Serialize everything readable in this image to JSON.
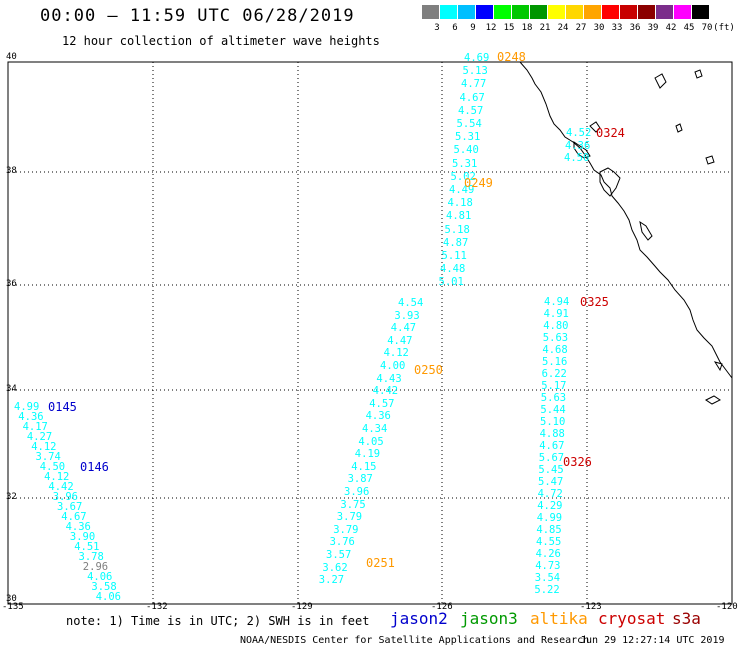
{
  "title": "00:00 – 11:59 UTC 06/28/2019",
  "subtitle": "12 hour collection of altimeter wave heights",
  "colorbar": {
    "unit": "(ft)",
    "ticks": [
      "3",
      "6",
      "9",
      "12",
      "15",
      "18",
      "21",
      "24",
      "27",
      "30",
      "33",
      "36",
      "39",
      "42",
      "45",
      "70"
    ],
    "colors": [
      "#7f7f7f",
      "#00ffff",
      "#00bfff",
      "#0000ff",
      "#00ff00",
      "#00c800",
      "#009600",
      "#ffff00",
      "#ffd700",
      "#ffa500",
      "#ff0000",
      "#c80000",
      "#8b0000",
      "#7b2d8b",
      "#ff00ff",
      "#000000"
    ]
  },
  "axes": {
    "lat_labels": [
      "40",
      "38",
      "36",
      "34",
      "32",
      "30"
    ],
    "lon_labels": [
      "-135",
      "-132",
      "-129",
      "-126",
      "-123",
      "-120"
    ]
  },
  "passes": {
    "p0145": {
      "label": "0145",
      "color": "#0000cc",
      "values": [
        "4.99",
        "4.36",
        "4.17",
        "4.27",
        "4.12",
        "3.74",
        "4.50",
        "4.12",
        "4.42",
        "3.96",
        "3.67",
        "4.67",
        "4.36",
        "3.90",
        "4.51",
        "3.78",
        "2.96",
        "4.06",
        "3.58",
        "4.06"
      ]
    },
    "p0146": {
      "label": "0146",
      "color": "#0000cc"
    },
    "p0248": {
      "label": "0248",
      "color": "#ff9900",
      "values": [
        "4.69",
        "5.13",
        "4.77",
        "4.67",
        "4.57",
        "5.54",
        "5.31",
        "5.40",
        "5.31",
        "5.02",
        "4.49",
        "4.18",
        "4.81",
        "5.18",
        "4.87",
        "5.11",
        "4.48",
        "5.01"
      ]
    },
    "p0249": {
      "label": "0249",
      "color": "#ff9900"
    },
    "p0250": {
      "label": "0250",
      "color": "#ff9900",
      "values": [
        "4.54",
        "3.93",
        "4.47",
        "4.47",
        "4.12",
        "4.00",
        "4.43",
        "4.42",
        "4.57",
        "4.36",
        "4.34",
        "4.05",
        "4.19",
        "4.15",
        "3.87",
        "3.96",
        "3.75",
        "3.79",
        "3.79",
        "3.76",
        "3.57",
        "3.62",
        "3.27"
      ]
    },
    "p0251": {
      "label": "0251",
      "color": "#ff9900"
    },
    "p0324": {
      "label": "0324",
      "color": "#cc0000",
      "values": [
        "4.52",
        "4.36",
        "4.50"
      ]
    },
    "p0325": {
      "label": "0325",
      "color": "#cc0000",
      "values": [
        "4.94",
        "4.91",
        "4.80",
        "5.63",
        "4.68",
        "5.16",
        "6.22",
        "5.17",
        "5.63",
        "5.44",
        "5.10",
        "4.88",
        "4.67",
        "5.67",
        "5.45",
        "5.47",
        "4.72",
        "4.29",
        "4.99",
        "4.85",
        "4.55",
        "4.26",
        "4.73",
        "3.54",
        "5.22"
      ]
    },
    "p0326": {
      "label": "0326",
      "color": "#cc0000"
    }
  },
  "note": "note:  1) Time is in UTC;  2) SWH is in feet",
  "legend": [
    {
      "label": "jason2",
      "color": "#0000cc"
    },
    {
      "label": "jason3",
      "color": "#009900"
    },
    {
      "label": "altika",
      "color": "#ff9900"
    },
    {
      "label": "cryosat",
      "color": "#cc0000"
    },
    {
      "label": "s3a",
      "color": "#990000"
    }
  ],
  "credit": "NOAA/NESDIS Center for Satellite Applications and Research",
  "timestamp": "Jun 29 12:27:14 UTC 2019"
}
